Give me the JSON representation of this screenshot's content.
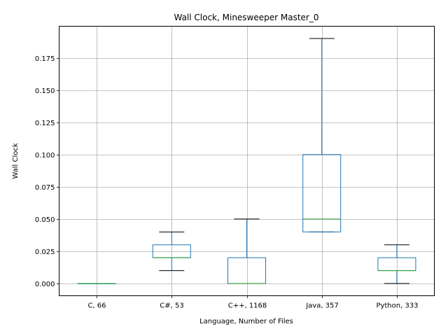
{
  "chart_data": {
    "type": "box",
    "title": "Wall Clock, Minesweeper Master_0",
    "xlabel": "Language, Number of Files",
    "ylabel": "Wall Clock",
    "ylim": [
      -0.0095,
      0.1995
    ],
    "yticks": [
      "0.000",
      "0.025",
      "0.050",
      "0.075",
      "0.100",
      "0.125",
      "0.150",
      "0.175"
    ],
    "ytick_values": [
      0,
      0.025,
      0.05,
      0.075,
      0.1,
      0.125,
      0.15,
      0.175
    ],
    "grid": true,
    "categories": [
      "C, 66",
      "C#, 53",
      "C++, 1168",
      "Java, 357",
      "Python, 333"
    ],
    "boxes": [
      {
        "whisker_low": 0.0,
        "q1": 0.0,
        "median": 0.0,
        "q3": 0.0,
        "whisker_high": 0.0
      },
      {
        "whisker_low": 0.01,
        "q1": 0.02,
        "median": 0.02,
        "q3": 0.03,
        "whisker_high": 0.04
      },
      {
        "whisker_low": 0.0,
        "q1": 0.0,
        "median": 0.0,
        "q3": 0.02,
        "whisker_high": 0.05
      },
      {
        "whisker_low": 0.04,
        "q1": 0.04,
        "median": 0.05,
        "q3": 0.1,
        "whisker_high": 0.19
      },
      {
        "whisker_low": 0.0,
        "q1": 0.01,
        "median": 0.01,
        "q3": 0.02,
        "whisker_high": 0.03
      }
    ],
    "colors": {
      "box": "#1f77b4",
      "median": "#2ca02c",
      "whisker_cap": "#000000",
      "grid": "#b0b0b0"
    }
  }
}
